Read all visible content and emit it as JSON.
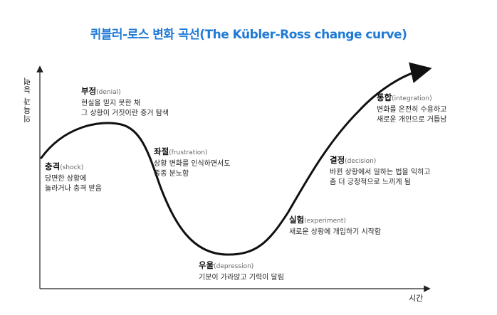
{
  "title": "퀴블러-로스 변화 곡선(The Kübler-Ross change curve)",
  "axes": {
    "y_label": "의욕과 능력",
    "x_label": "시간"
  },
  "stages": {
    "shock": {
      "name": "충격",
      "en": "(shock)",
      "lines": [
        "당면한 상황에",
        "놀라거나 충격 받음"
      ]
    },
    "denial": {
      "name": "부정",
      "en": "(denial)",
      "lines": [
        "현실을 믿지 못한 채",
        "그 상황이 거짓이란 증거 탐색"
      ]
    },
    "frustration": {
      "name": "좌절",
      "en": "(frustration)",
      "lines": [
        "상황 변화를 인식하면서도",
        "종종 분노함"
      ]
    },
    "depression": {
      "name": "우울",
      "en": "(depression)",
      "lines": [
        "기분이 가라앉고 기력이 달림"
      ]
    },
    "experiment": {
      "name": "실험",
      "en": "(experiment)",
      "lines": [
        "새로운 상황에 개입하기 시작함"
      ]
    },
    "decision": {
      "name": "결정",
      "en": "(decision)",
      "lines": [
        "바뀐 상황에서 일하는 법을 익히고",
        "좀 더 긍정적으로 느끼게 됨"
      ]
    },
    "integration": {
      "name": "통합",
      "en": "(integration)",
      "lines": [
        "변화를 온전히 수용하고",
        "새로운 개인으로 거듭남"
      ]
    }
  },
  "colors": {
    "title": "#1f7ad6",
    "curve": "#111111",
    "axis": "#222222"
  }
}
